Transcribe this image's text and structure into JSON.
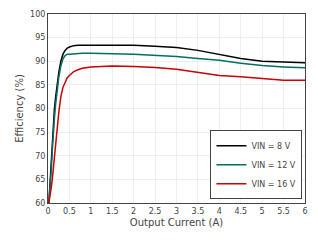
{
  "chart_data": {
    "type": "line",
    "xlabel": "Output Current (A)",
    "ylabel": "Efficiency (%)",
    "xlim": [
      0,
      6
    ],
    "ylim": [
      60,
      100
    ],
    "xticks": [
      0,
      0.5,
      1,
      1.5,
      2,
      2.5,
      3,
      3.5,
      4,
      4.5,
      5,
      5.5,
      6
    ],
    "yticks": [
      60,
      65,
      70,
      75,
      80,
      85,
      90,
      95,
      100
    ],
    "grid": true,
    "legend": "lower right",
    "x": [
      0.02,
      0.05,
      0.08,
      0.1,
      0.12,
      0.15,
      0.18,
      0.2,
      0.25,
      0.3,
      0.35,
      0.4,
      0.45,
      0.5,
      0.6,
      0.7,
      0.8,
      1.0,
      1.2,
      1.5,
      2.0,
      2.5,
      3.0,
      3.5,
      4.0,
      4.5,
      5.0,
      5.5,
      6.0
    ],
    "series": [
      {
        "name": "VIN = 8 V",
        "color": "#000000",
        "values": [
          60.0,
          65.0,
          70.5,
          74.0,
          77.0,
          80.0,
          82.5,
          84.0,
          87.5,
          90.0,
          91.5,
          92.3,
          92.8,
          93.0,
          93.3,
          93.4,
          93.4,
          93.5,
          93.5,
          93.5,
          93.4,
          93.2,
          92.9,
          92.3,
          91.5,
          90.6,
          90.0,
          89.8,
          89.7
        ]
      },
      {
        "name": "VIN = 12 V",
        "color": "#007060",
        "values": [
          60.0,
          63.0,
          67.5,
          71.0,
          74.5,
          78.0,
          81.0,
          83.0,
          86.5,
          89.0,
          90.5,
          91.2,
          91.5,
          91.5,
          91.6,
          91.7,
          91.7,
          91.7,
          91.7,
          91.6,
          91.5,
          91.3,
          91.0,
          90.6,
          90.2,
          89.6,
          89.1,
          88.8,
          88.6
        ]
      },
      {
        "name": "VIN = 16 V",
        "color": "#cc0000",
        "values": [
          60.0,
          61.5,
          63.5,
          65.0,
          67.0,
          69.5,
          72.5,
          74.5,
          79.0,
          82.5,
          84.5,
          85.5,
          86.5,
          87.0,
          87.8,
          88.2,
          88.5,
          88.8,
          88.9,
          89.0,
          88.9,
          88.7,
          88.3,
          87.6,
          87.0,
          86.7,
          86.3,
          86.0,
          86.0
        ]
      }
    ]
  }
}
